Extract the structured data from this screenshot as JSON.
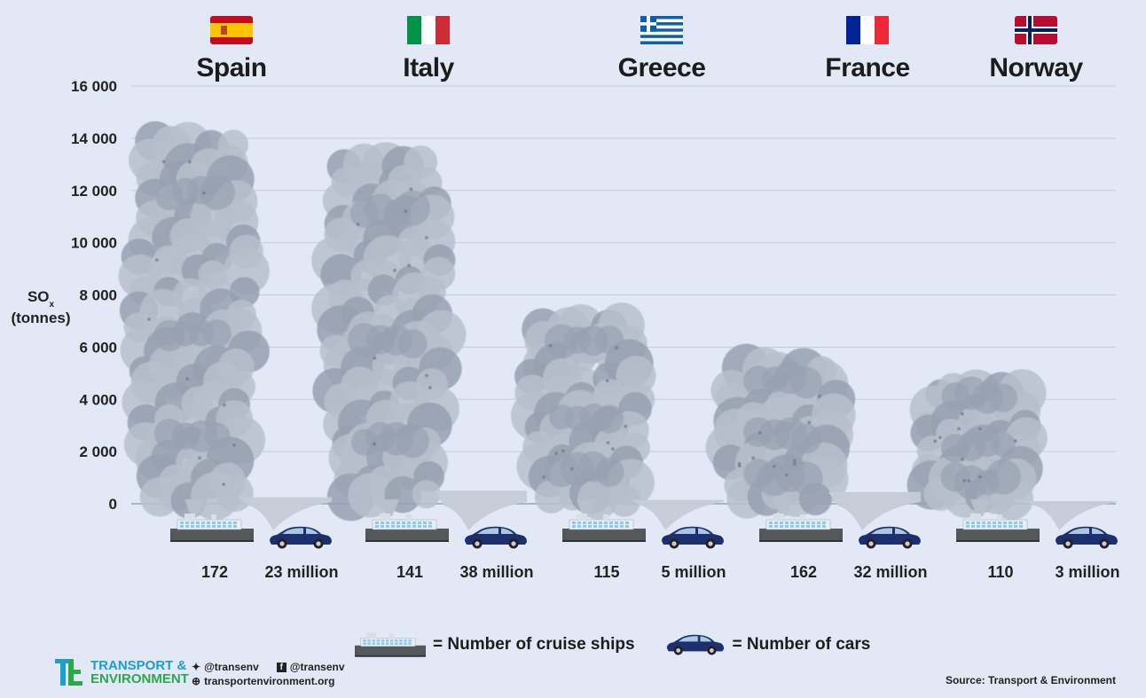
{
  "chart_data": {
    "type": "bar",
    "ylabel_main": "SO",
    "ylabel_sub": "x",
    "ylabel_unit": "(tonnes)",
    "y_ticks": [
      "16 000",
      "14 000",
      "12 000",
      "10 000",
      "8 000",
      "6 000",
      "4 000",
      "2 000",
      "0"
    ],
    "ylim": [
      0,
      16000
    ],
    "categories": [
      "Spain",
      "Italy",
      "Greece",
      "France",
      "Norway"
    ],
    "series": [
      {
        "name": "Cruise ships",
        "values": [
          14500,
          13700,
          7500,
          5800,
          5000
        ]
      },
      {
        "name": "Cars",
        "values": [
          250,
          500,
          150,
          450,
          100
        ]
      }
    ],
    "ship_counts": [
      "172",
      "141",
      "115",
      "162",
      "110"
    ],
    "car_counts": [
      "23 million",
      "38 million",
      "5 million",
      "32 million",
      "3 million"
    ]
  },
  "legend": {
    "ships": "= Number of cruise ships",
    "cars": "= Number of cars"
  },
  "footer": {
    "brand_line1": "TRANSPORT &",
    "brand_line2": "ENVIRONMENT",
    "twitter": "@transenv",
    "facebook": "@transenv",
    "website": "transportenvironment.org",
    "source": "Source: Transport & Environment"
  },
  "colors": {
    "background": "#e3e8f6",
    "smoke_light": "#b8c0cc",
    "smoke_dark": "#97a1b0",
    "ship_hull": "#505558",
    "car_body": "#1d2f6f",
    "brand_blue": "#1b9fd1",
    "brand_green": "#2aa84a"
  },
  "icons": {
    "flags": [
      "spain-flag-icon",
      "italy-flag-icon",
      "greece-flag-icon",
      "france-flag-icon",
      "norway-flag-icon"
    ],
    "ship": "cruise-ship-icon",
    "car": "car-icon"
  }
}
